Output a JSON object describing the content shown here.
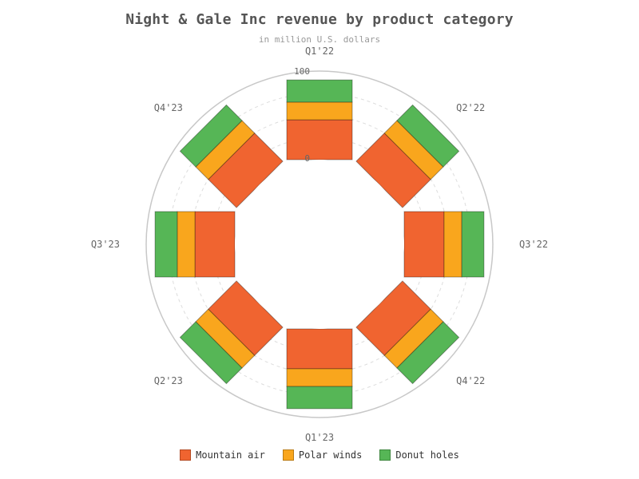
{
  "chart_data": {
    "type": "bar",
    "polar": true,
    "stacked": true,
    "title": "Night & Gale Inc revenue by product category",
    "subtitle": "in million U.S. dollars",
    "categories": [
      "Q1'22",
      "Q2'22",
      "Q3'22",
      "Q4'22",
      "Q1'23",
      "Q2'23",
      "Q3'23",
      "Q4'23"
    ],
    "series": [
      {
        "name": "Mountain air",
        "color": "#F06430",
        "values": [
          45,
          45,
          45,
          45,
          45,
          45,
          45,
          45
        ]
      },
      {
        "name": "Polar winds",
        "color": "#F9A61D",
        "values": [
          20,
          20,
          20,
          20,
          20,
          20,
          20,
          20
        ]
      },
      {
        "name": "Donut holes",
        "color": "#56B656",
        "values": [
          25,
          25,
          25,
          25,
          25,
          25,
          25,
          25
        ]
      }
    ],
    "radial_axis": {
      "range": [
        0,
        100
      ],
      "tick_labels": [
        "0",
        "100"
      ]
    },
    "grid": true,
    "legend_position": "bottom"
  }
}
